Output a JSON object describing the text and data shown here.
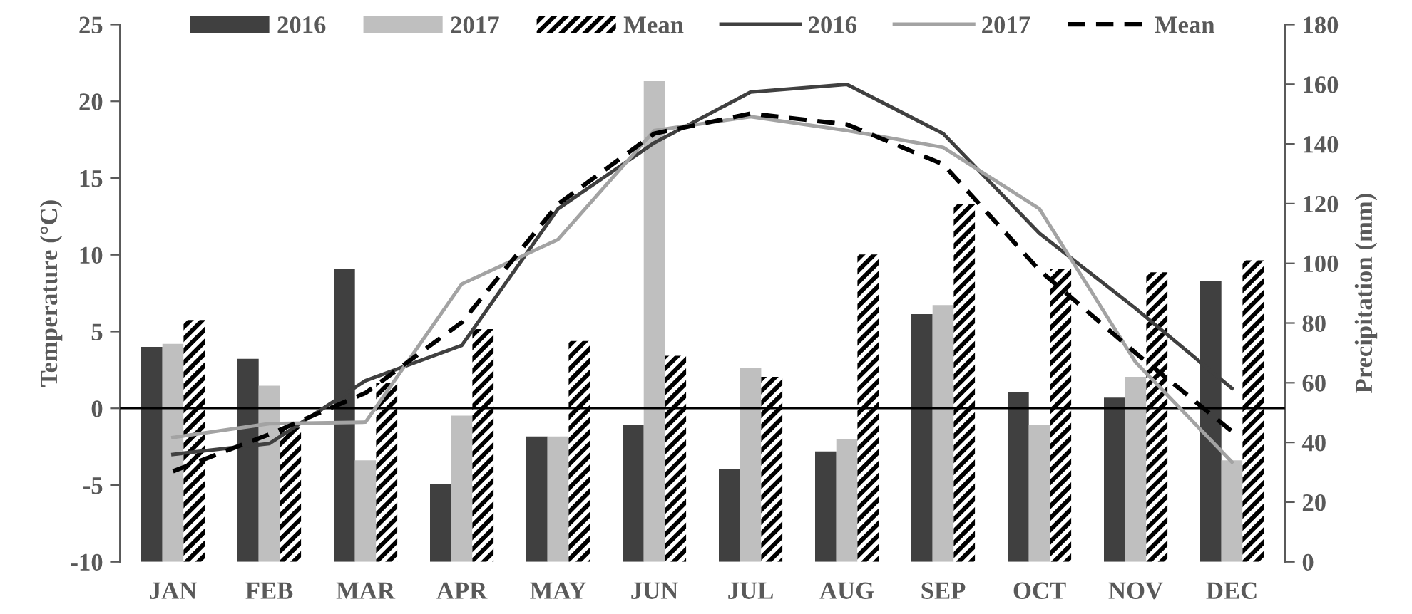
{
  "chart_data": {
    "type": "bar",
    "ylabel": "Temperature (°C)",
    "y2label": "Precipitation (mm)",
    "categories": [
      "JAN",
      "FEB",
      "MAR",
      "APR",
      "MAY",
      "JUN",
      "JUL",
      "AUG",
      "SEP",
      "OCT",
      "NOV",
      "DEC"
    ],
    "series": [
      {
        "name": "2016",
        "axis": "y2",
        "color": "#404040",
        "values": [
          72,
          68,
          98,
          26,
          42,
          46,
          31,
          37,
          83,
          57,
          55,
          94
        ]
      },
      {
        "name": "2017",
        "axis": "y2",
        "color": "#bfbfbf",
        "values": [
          73,
          59,
          34,
          49,
          42,
          161,
          65,
          41,
          86,
          46,
          62,
          34
        ]
      },
      {
        "name": "Mean",
        "axis": "y2",
        "color": "#000000",
        "line_style": "dashed",
        "values": [
          81,
          45,
          60,
          78,
          74,
          69,
          62,
          103,
          120,
          98,
          97,
          101
        ]
      },
      {
        "name": "2016",
        "type": "line",
        "axis": "y",
        "color": "#404040",
        "line_style": "solid",
        "values": [
          -3.0,
          -2.3,
          1.8,
          4.1,
          13.0,
          17.3,
          20.6,
          21.1,
          17.9,
          11.4,
          6.5,
          1.3
        ]
      },
      {
        "name": "2017",
        "type": "line",
        "axis": "y",
        "color": "#a3a3a3",
        "line_style": "solid",
        "values": [
          -1.9,
          -1.0,
          -0.9,
          8.1,
          11.0,
          18.1,
          19.0,
          18.1,
          17.0,
          13.0,
          3.0,
          -3.5
        ]
      },
      {
        "name": "Mean",
        "type": "line",
        "axis": "y",
        "color": "#000000",
        "line_style": "dashed",
        "values": [
          -4.1,
          -1.7,
          1.0,
          5.6,
          13.3,
          17.9,
          19.2,
          18.5,
          15.9,
          9.0,
          3.6,
          -1.5
        ]
      }
    ],
    "ylim": [
      -10,
      25
    ],
    "yticks": [
      -10,
      -5,
      0,
      5,
      10,
      15,
      20,
      25
    ],
    "y2lim": [
      0,
      180
    ],
    "y2ticks": [
      0,
      20,
      40,
      60,
      80,
      100,
      120,
      140,
      160,
      180
    ],
    "ref_lines": [
      {
        "axis": "y",
        "value": 0,
        "color": "#000000"
      }
    ],
    "legend": "top",
    "grid": false,
    "marker": "none"
  }
}
